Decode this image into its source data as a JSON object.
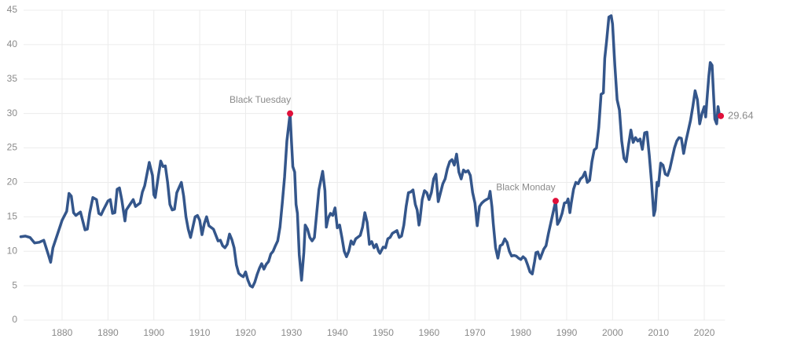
{
  "chart_data": {
    "type": "line",
    "x": [
      1871,
      1872,
      1873,
      1874,
      1875,
      1876,
      1877,
      1877.5,
      1878,
      1879,
      1880,
      1881,
      1881.5,
      1882,
      1882.5,
      1883,
      1884,
      1885,
      1885.5,
      1886,
      1886.7,
      1887.5,
      1888,
      1888.5,
      1889,
      1890,
      1890.5,
      1891,
      1891.5,
      1892,
      1892.5,
      1893,
      1893.7,
      1894,
      1895,
      1895.5,
      1896,
      1897,
      1897.5,
      1898,
      1899,
      1899.7,
      1900,
      1900.3,
      1901,
      1901.5,
      1902,
      1902.5,
      1903,
      1903.5,
      1904,
      1904.5,
      1905,
      1906,
      1906.5,
      1907,
      1907.5,
      1908,
      1908.5,
      1909,
      1909.5,
      1910,
      1910.5,
      1911,
      1911.5,
      1912,
      1913,
      1914,
      1914.5,
      1915,
      1915.5,
      1916,
      1916.5,
      1917,
      1917.5,
      1918,
      1918.5,
      1919,
      1919.5,
      1920,
      1920.5,
      1921,
      1921.5,
      1922,
      1922.5,
      1923,
      1923.5,
      1924,
      1924.5,
      1925,
      1925.5,
      1926,
      1926.5,
      1927,
      1927.5,
      1928,
      1928.5,
      1929,
      1929.7,
      1930,
      1930.3,
      1930.7,
      1931,
      1931.3,
      1931.7,
      1932.2,
      1932.7,
      1933,
      1933.5,
      1934,
      1934.5,
      1935,
      1935.5,
      1936,
      1936.8,
      1937.3,
      1937.6,
      1938,
      1938.5,
      1939,
      1939.5,
      1940,
      1940.5,
      1941,
      1941.5,
      1942,
      1942.5,
      1943,
      1943.5,
      1944,
      1945,
      1945.5,
      1946,
      1946.5,
      1947,
      1947.5,
      1948,
      1948.5,
      1949,
      1949.3,
      1950,
      1950.5,
      1951,
      1951.5,
      1952,
      1953,
      1953.5,
      1954,
      1954.5,
      1955,
      1955.5,
      1956,
      1956.5,
      1957,
      1957.4,
      1957.8,
      1958,
      1958.5,
      1959,
      1959.5,
      1960,
      1960.5,
      1961,
      1961.5,
      1962,
      1962.5,
      1963,
      1963.5,
      1964,
      1964.5,
      1965,
      1965.5,
      1966,
      1966.5,
      1967,
      1967.5,
      1968,
      1968.5,
      1969,
      1969.5,
      1970,
      1970.5,
      1971,
      1971.5,
      1972,
      1973,
      1973.3,
      1973.7,
      1974,
      1974.5,
      1975,
      1975.5,
      1976,
      1976.5,
      1977,
      1977.5,
      1978,
      1978.5,
      1979,
      1979.5,
      1980,
      1980.5,
      1981,
      1981.5,
      1982,
      1982.5,
      1983,
      1983.3,
      1983.7,
      1984.2,
      1985,
      1985.5,
      1986,
      1986.5,
      1987,
      1987.6,
      1988,
      1988.5,
      1989,
      1989.5,
      1990,
      1990.3,
      1990.7,
      1991,
      1991.5,
      1992,
      1992.5,
      1993,
      1993.5,
      1994,
      1994.5,
      1995,
      1995.5,
      1996,
      1996.5,
      1997,
      1997.5,
      1998,
      1998.3,
      1998.7,
      1999.2,
      1999.7,
      2000,
      2000.5,
      2001,
      2001.5,
      2002,
      2002.5,
      2003,
      2003.5,
      2004,
      2004.5,
      2005,
      2005.5,
      2006,
      2006.5,
      2007,
      2007.5,
      2008,
      2008.5,
      2009,
      2009.3,
      2009.7,
      2010,
      2010.5,
      2011,
      2011.5,
      2012,
      2012.5,
      2013,
      2013.5,
      2014,
      2014.5,
      2015,
      2015.5,
      2016,
      2016.5,
      2017,
      2017.5,
      2018,
      2018.5,
      2019,
      2019.5,
      2020,
      2020.3,
      2020.7,
      2021,
      2021.3,
      2021.7,
      2022,
      2022.3,
      2022.7,
      2023,
      2023.3,
      2023.6
    ],
    "series": [
      {
        "color": "#34568b",
        "values": [
          12.1,
          12.2,
          12.0,
          11.2,
          11.3,
          11.6,
          9.5,
          8.4,
          10.5,
          12.5,
          14.5,
          15.8,
          18.4,
          18.0,
          15.6,
          15.2,
          15.7,
          13.1,
          13.2,
          15.5,
          17.8,
          17.5,
          15.5,
          15.3,
          16.0,
          17.3,
          17.5,
          15.5,
          15.6,
          19.0,
          19.2,
          17.5,
          14.4,
          16.0,
          17.0,
          17.5,
          16.5,
          17.0,
          18.6,
          19.5,
          22.9,
          21.0,
          18.2,
          17.8,
          21.0,
          23.1,
          22.3,
          22.4,
          20.0,
          16.8,
          16.0,
          16.1,
          18.5,
          20.0,
          18.0,
          15.0,
          13.2,
          12.0,
          13.5,
          15.0,
          15.2,
          14.5,
          12.4,
          14.0,
          15.0,
          13.7,
          13.2,
          11.5,
          11.6,
          10.8,
          10.5,
          11.0,
          12.5,
          11.7,
          10.5,
          8.0,
          6.8,
          6.5,
          6.3,
          7.0,
          5.8,
          5.0,
          4.8,
          5.5,
          6.6,
          7.5,
          8.2,
          7.4,
          8.1,
          8.5,
          9.6,
          10.0,
          10.8,
          11.5,
          13.5,
          17.0,
          20.8,
          26.0,
          30.0,
          26.0,
          22.3,
          21.5,
          16.8,
          15.5,
          9.5,
          5.8,
          9.8,
          13.8,
          13.2,
          12.0,
          11.5,
          12.0,
          15.5,
          19.0,
          21.6,
          18.8,
          13.5,
          14.8,
          15.5,
          15.2,
          16.3,
          13.4,
          13.8,
          12.0,
          10.0,
          9.2,
          10.0,
          11.5,
          11.0,
          11.8,
          12.3,
          13.5,
          15.6,
          14.2,
          11.0,
          11.4,
          10.5,
          11.0,
          10.0,
          9.7,
          10.6,
          10.5,
          11.8,
          12.0,
          12.6,
          13.0,
          12.0,
          12.2,
          13.8,
          16.5,
          18.5,
          18.6,
          18.9,
          16.8,
          16.0,
          13.8,
          14.5,
          17.5,
          18.8,
          18.5,
          17.5,
          18.5,
          20.5,
          21.2,
          17.2,
          18.5,
          19.8,
          20.5,
          22.0,
          23.0,
          23.3,
          22.5,
          24.1,
          21.5,
          20.5,
          21.8,
          21.5,
          21.7,
          21.0,
          18.5,
          17.0,
          13.7,
          16.5,
          17.0,
          17.3,
          17.7,
          18.7,
          16.5,
          14.0,
          10.5,
          9.0,
          10.8,
          11.0,
          11.8,
          11.3,
          10.0,
          9.3,
          9.4,
          9.3,
          9.0,
          8.8,
          9.2,
          8.9,
          8.0,
          7.0,
          6.7,
          8.5,
          9.8,
          9.9,
          8.9,
          10.3,
          10.8,
          12.5,
          14.0,
          15.5,
          17.3,
          13.9,
          14.5,
          15.5,
          17.0,
          17.1,
          17.6,
          15.6,
          17.0,
          19.0,
          20.0,
          19.8,
          20.5,
          20.8,
          21.5,
          20.0,
          20.3,
          23.0,
          24.7,
          25.0,
          28.0,
          32.8,
          33.0,
          38.0,
          40.5,
          44.0,
          44.2,
          43.0,
          37.0,
          32.0,
          30.5,
          26.0,
          23.5,
          23.0,
          25.5,
          27.6,
          25.8,
          26.5,
          26.0,
          26.3,
          24.8,
          27.2,
          27.3,
          24.0,
          20.0,
          15.2,
          16.0,
          20.0,
          19.5,
          22.8,
          22.5,
          21.2,
          21.0,
          22.0,
          23.5,
          25.0,
          26.0,
          26.5,
          26.4,
          24.2,
          26.0,
          27.5,
          29.0,
          31.0,
          33.3,
          32.0,
          28.5,
          30.0,
          31.0,
          29.5,
          33.0,
          35.5,
          37.4,
          37.0,
          33.0,
          29.2,
          28.5,
          31.0,
          29.8,
          29.64
        ]
      }
    ],
    "annotations": [
      {
        "text": "Black Tuesday",
        "x": 1929.7,
        "y": 30.0
      },
      {
        "text": "Black Monday",
        "x": 1987.6,
        "y": 17.3
      }
    ],
    "marker_color": "#e0103a",
    "xlim": [
      1871,
      2024.5
    ],
    "xticks": [
      1880,
      1890,
      1900,
      1910,
      1920,
      1930,
      1940,
      1950,
      1960,
      1970,
      1980,
      1990,
      2000,
      2010,
      2020
    ],
    "ylim": [
      0,
      45
    ],
    "yticks": [
      0,
      5,
      10,
      15,
      20,
      25,
      30,
      35,
      40,
      45
    ],
    "grid": true
  }
}
